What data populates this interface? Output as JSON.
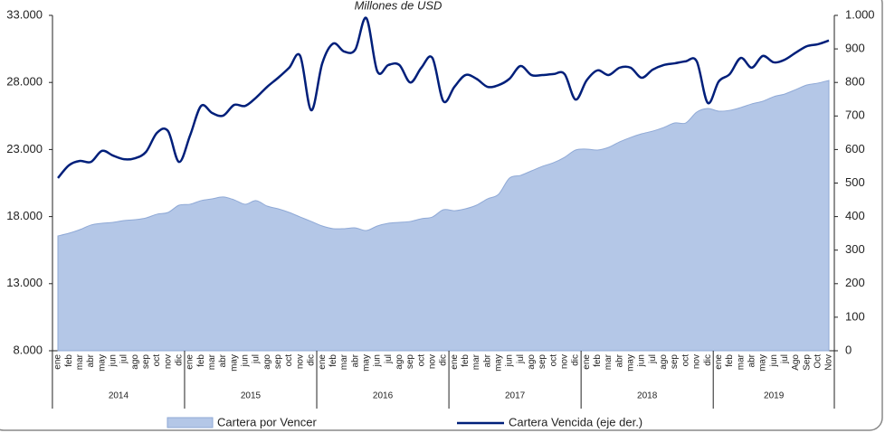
{
  "chart_data": {
    "type": "area-line",
    "title": "Millones de USD",
    "categories": [
      "ene",
      "feb",
      "mar",
      "abr",
      "may",
      "jun",
      "jul",
      "ago",
      "sep",
      "oct",
      "nov",
      "dic",
      "ene",
      "feb",
      "mar",
      "abr",
      "may",
      "jun",
      "jul",
      "ago",
      "sep",
      "oct",
      "nov",
      "dic",
      "ene",
      "feb",
      "mar",
      "abr",
      "may",
      "jun",
      "jul",
      "ago",
      "sep",
      "oct",
      "nov",
      "dic",
      "ene",
      "feb",
      "mar",
      "abr",
      "may",
      "jun",
      "jul",
      "ago",
      "sep",
      "oct",
      "nov",
      "dic",
      "ene",
      "feb",
      "mar",
      "abr",
      "may",
      "jun",
      "jul",
      "ago",
      "sep",
      "oct",
      "nov",
      "dic",
      "ene",
      "feb",
      "mar",
      "abr",
      "may",
      "jun",
      "jul",
      "Ago",
      "Sep",
      "Oct",
      "Nov"
    ],
    "year_groups": [
      "2014",
      "2015",
      "2016",
      "2017",
      "2018",
      "2019"
    ],
    "series": [
      {
        "name": "Cartera por Vencer",
        "color": "#b4c7e7",
        "axis": "y",
        "values": [
          16560,
          16760,
          17030,
          17370,
          17500,
          17570,
          17700,
          17770,
          17900,
          18180,
          18310,
          18850,
          18920,
          19190,
          19320,
          19460,
          19250,
          18920,
          19190,
          18780,
          18580,
          18310,
          17970,
          17640,
          17300,
          17100,
          17100,
          17160,
          16960,
          17300,
          17500,
          17570,
          17640,
          17840,
          17970,
          18510,
          18440,
          18580,
          18850,
          19320,
          19660,
          20870,
          21070,
          21410,
          21750,
          22020,
          22420,
          22960,
          23030,
          22960,
          23160,
          23570,
          23900,
          24170,
          24370,
          24640,
          24980,
          24980,
          25790,
          26060,
          25860,
          25920,
          26130,
          26400,
          26600,
          26940,
          27140,
          27470,
          27810,
          27950,
          28150
        ]
      },
      {
        "name": "Cartera Vencida (eje der.)",
        "color": "#001f7a",
        "axis": "y2",
        "values": [
          515,
          553,
          566,
          563,
          596,
          582,
          571,
          574,
          593,
          650,
          655,
          563,
          642,
          730,
          709,
          701,
          733,
          730,
          755,
          787,
          814,
          844,
          879,
          717,
          857,
          916,
          892,
          898,
          992,
          833,
          852,
          852,
          800,
          844,
          873,
          744,
          787,
          822,
          811,
          787,
          792,
          811,
          849,
          822,
          822,
          825,
          825,
          749,
          806,
          836,
          822,
          844,
          844,
          814,
          838,
          852,
          857,
          863,
          863,
          739,
          803,
          825,
          873,
          844,
          879,
          860,
          868,
          889,
          908,
          914,
          925
        ]
      }
    ],
    "ylim": [
      8000,
      33000
    ],
    "yticks": [
      {
        "value": 8000,
        "label": "8.000"
      },
      {
        "value": 13000,
        "label": "13.000"
      },
      {
        "value": 18000,
        "label": "18.000"
      },
      {
        "value": 23000,
        "label": "23.000"
      },
      {
        "value": 28000,
        "label": "28.000"
      },
      {
        "value": 33000,
        "label": "33.000"
      }
    ],
    "y2lim": [
      0,
      1000
    ],
    "y2ticks": [
      0,
      100,
      200,
      300,
      400,
      500,
      600,
      700,
      800,
      900,
      {
        "value": 1000,
        "label": "1.000"
      }
    ]
  }
}
